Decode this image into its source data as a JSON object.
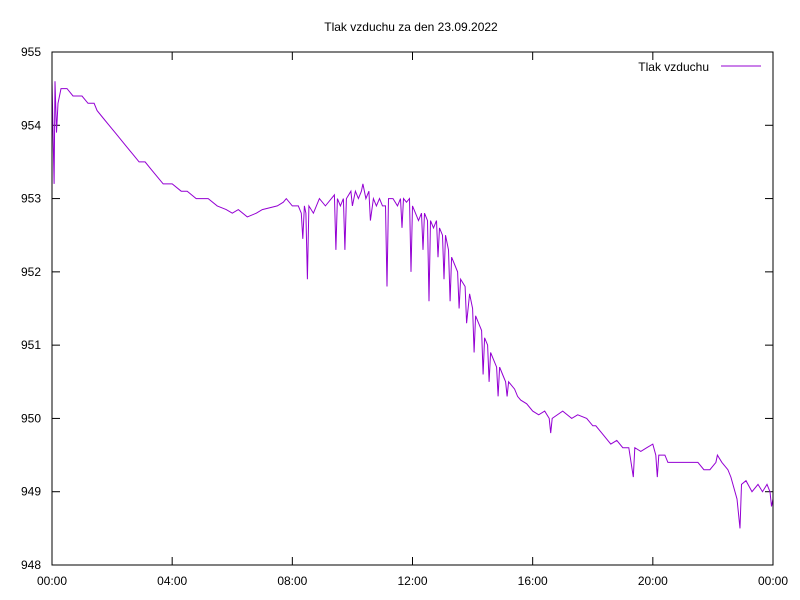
{
  "chart_data": {
    "type": "line",
    "title": "Tlak vzduchu za den 23.09.2022",
    "xlabel": "",
    "ylabel": "",
    "xlim": [
      0,
      24
    ],
    "ylim": [
      948,
      955
    ],
    "x_ticks": [
      {
        "value": 0,
        "label": "00:00"
      },
      {
        "value": 4,
        "label": "04:00"
      },
      {
        "value": 8,
        "label": "08:00"
      },
      {
        "value": 12,
        "label": "12:00"
      },
      {
        "value": 16,
        "label": "16:00"
      },
      {
        "value": 20,
        "label": "20:00"
      },
      {
        "value": 24,
        "label": "00:00"
      }
    ],
    "y_ticks": [
      948,
      949,
      950,
      951,
      952,
      953,
      954,
      955
    ],
    "grid": false,
    "legend_position": "top-right",
    "series": [
      {
        "name": "Tlak vzduchu",
        "color": "#9400d3",
        "points": [
          [
            0.0,
            954.6
          ],
          [
            0.07,
            953.2
          ],
          [
            0.1,
            954.6
          ],
          [
            0.15,
            953.9
          ],
          [
            0.2,
            954.3
          ],
          [
            0.25,
            954.4
          ],
          [
            0.3,
            954.5
          ],
          [
            0.5,
            954.5
          ],
          [
            0.7,
            954.4
          ],
          [
            1.0,
            954.4
          ],
          [
            1.2,
            954.3
          ],
          [
            1.4,
            954.3
          ],
          [
            1.5,
            954.2
          ],
          [
            1.7,
            954.1
          ],
          [
            1.9,
            954.0
          ],
          [
            2.1,
            953.9
          ],
          [
            2.3,
            953.8
          ],
          [
            2.5,
            953.7
          ],
          [
            2.7,
            953.6
          ],
          [
            2.9,
            953.5
          ],
          [
            3.1,
            953.5
          ],
          [
            3.3,
            953.4
          ],
          [
            3.5,
            953.3
          ],
          [
            3.7,
            953.2
          ],
          [
            4.0,
            953.2
          ],
          [
            4.3,
            953.1
          ],
          [
            4.5,
            953.1
          ],
          [
            4.8,
            953.0
          ],
          [
            5.2,
            953.0
          ],
          [
            5.5,
            952.9
          ],
          [
            5.8,
            952.85
          ],
          [
            6.0,
            952.8
          ],
          [
            6.2,
            952.85
          ],
          [
            6.5,
            952.75
          ],
          [
            6.8,
            952.8
          ],
          [
            7.0,
            952.85
          ],
          [
            7.5,
            952.9
          ],
          [
            7.7,
            952.95
          ],
          [
            7.8,
            953.0
          ],
          [
            8.0,
            952.9
          ],
          [
            8.2,
            952.9
          ],
          [
            8.3,
            952.8
          ],
          [
            8.35,
            952.45
          ],
          [
            8.4,
            952.9
          ],
          [
            8.45,
            952.8
          ],
          [
            8.5,
            951.9
          ],
          [
            8.55,
            952.9
          ],
          [
            8.7,
            952.8
          ],
          [
            8.9,
            953.0
          ],
          [
            9.1,
            952.9
          ],
          [
            9.3,
            953.0
          ],
          [
            9.4,
            953.05
          ],
          [
            9.45,
            952.3
          ],
          [
            9.5,
            953.0
          ],
          [
            9.6,
            952.9
          ],
          [
            9.7,
            953.0
          ],
          [
            9.75,
            952.3
          ],
          [
            9.8,
            953.0
          ],
          [
            9.95,
            953.1
          ],
          [
            10.0,
            952.9
          ],
          [
            10.1,
            953.1
          ],
          [
            10.2,
            953.0
          ],
          [
            10.3,
            953.1
          ],
          [
            10.35,
            953.2
          ],
          [
            10.45,
            953.0
          ],
          [
            10.55,
            953.1
          ],
          [
            10.6,
            952.7
          ],
          [
            10.7,
            953.0
          ],
          [
            10.8,
            952.9
          ],
          [
            10.9,
            953.0
          ],
          [
            11.0,
            952.9
          ],
          [
            11.1,
            952.9
          ],
          [
            11.15,
            951.8
          ],
          [
            11.2,
            953.0
          ],
          [
            11.35,
            953.0
          ],
          [
            11.5,
            952.9
          ],
          [
            11.6,
            953.0
          ],
          [
            11.65,
            952.6
          ],
          [
            11.7,
            953.0
          ],
          [
            11.8,
            952.95
          ],
          [
            11.9,
            953.0
          ],
          [
            11.95,
            952.0
          ],
          [
            12.0,
            952.9
          ],
          [
            12.1,
            952.8
          ],
          [
            12.2,
            952.7
          ],
          [
            12.3,
            952.8
          ],
          [
            12.35,
            952.3
          ],
          [
            12.4,
            952.8
          ],
          [
            12.5,
            952.7
          ],
          [
            12.55,
            951.6
          ],
          [
            12.6,
            952.7
          ],
          [
            12.7,
            952.6
          ],
          [
            12.8,
            952.7
          ],
          [
            12.85,
            952.2
          ],
          [
            12.9,
            952.6
          ],
          [
            13.0,
            952.5
          ],
          [
            13.05,
            951.9
          ],
          [
            13.1,
            952.5
          ],
          [
            13.2,
            952.3
          ],
          [
            13.25,
            951.6
          ],
          [
            13.3,
            952.2
          ],
          [
            13.4,
            952.1
          ],
          [
            13.5,
            952.0
          ],
          [
            13.55,
            951.5
          ],
          [
            13.6,
            951.9
          ],
          [
            13.75,
            951.8
          ],
          [
            13.8,
            951.3
          ],
          [
            13.9,
            951.7
          ],
          [
            14.0,
            951.5
          ],
          [
            14.05,
            950.9
          ],
          [
            14.1,
            951.4
          ],
          [
            14.3,
            951.2
          ],
          [
            14.35,
            950.6
          ],
          [
            14.4,
            951.1
          ],
          [
            14.5,
            951.0
          ],
          [
            14.55,
            950.5
          ],
          [
            14.6,
            950.9
          ],
          [
            14.7,
            950.8
          ],
          [
            14.8,
            950.7
          ],
          [
            14.85,
            950.3
          ],
          [
            14.9,
            950.7
          ],
          [
            15.0,
            950.6
          ],
          [
            15.1,
            950.5
          ],
          [
            15.15,
            950.3
          ],
          [
            15.2,
            950.5
          ],
          [
            15.4,
            950.4
          ],
          [
            15.5,
            950.3
          ],
          [
            15.6,
            950.25
          ],
          [
            15.8,
            950.2
          ],
          [
            16.0,
            950.1
          ],
          [
            16.2,
            950.05
          ],
          [
            16.4,
            950.1
          ],
          [
            16.55,
            950.0
          ],
          [
            16.6,
            949.8
          ],
          [
            16.65,
            950.0
          ],
          [
            17.0,
            950.1
          ],
          [
            17.3,
            950.0
          ],
          [
            17.5,
            950.05
          ],
          [
            17.8,
            950.0
          ],
          [
            18.0,
            949.9
          ],
          [
            18.1,
            949.9
          ],
          [
            18.3,
            949.8
          ],
          [
            18.5,
            949.7
          ],
          [
            18.6,
            949.65
          ],
          [
            18.8,
            949.7
          ],
          [
            19.0,
            949.6
          ],
          [
            19.2,
            949.6
          ],
          [
            19.35,
            949.2
          ],
          [
            19.4,
            949.6
          ],
          [
            19.6,
            949.55
          ],
          [
            19.8,
            949.6
          ],
          [
            20.0,
            949.65
          ],
          [
            20.1,
            949.5
          ],
          [
            20.15,
            949.2
          ],
          [
            20.2,
            949.5
          ],
          [
            20.4,
            949.5
          ],
          [
            20.5,
            949.4
          ],
          [
            21.0,
            949.4
          ],
          [
            21.5,
            949.4
          ],
          [
            21.7,
            949.3
          ],
          [
            21.9,
            949.3
          ],
          [
            22.1,
            949.4
          ],
          [
            22.15,
            949.5
          ],
          [
            22.3,
            949.4
          ],
          [
            22.5,
            949.3
          ],
          [
            22.6,
            949.2
          ],
          [
            22.8,
            948.9
          ],
          [
            22.9,
            948.5
          ],
          [
            22.95,
            949.1
          ],
          [
            23.1,
            949.15
          ],
          [
            23.3,
            949.0
          ],
          [
            23.5,
            949.1
          ],
          [
            23.65,
            949.0
          ],
          [
            23.8,
            949.1
          ],
          [
            23.9,
            949.0
          ],
          [
            23.95,
            948.8
          ],
          [
            24.0,
            948.9
          ]
        ]
      }
    ]
  }
}
